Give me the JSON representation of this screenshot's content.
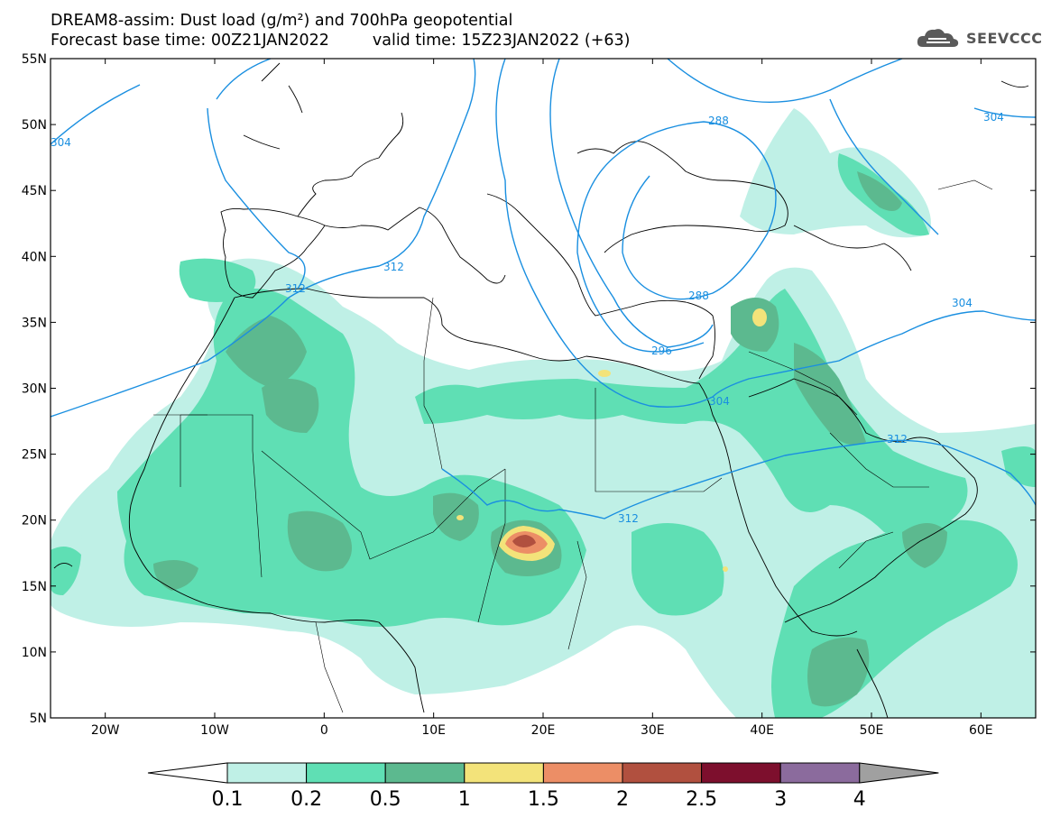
{
  "title_line1": "DREAM8-assim: Dust load (g/m²) and 700hPa geopotential",
  "title_line2_left": "Forecast base time: 00Z21JAN2022",
  "title_line2_right": "valid time: 15Z23JAN2022 (+63)",
  "logo": {
    "text": "SEEVCCC",
    "icon": "cloud-logo-icon"
  },
  "map": {
    "lat_labels": [
      "55N",
      "50N",
      "45N",
      "40N",
      "35N",
      "30N",
      "25N",
      "20N",
      "15N",
      "10N",
      "5N"
    ],
    "lon_labels": [
      "20W",
      "10W",
      "0",
      "10E",
      "20E",
      "30E",
      "40E",
      "50E",
      "60E"
    ],
    "contour_labels": [
      "304",
      "288",
      "304",
      "312",
      "312",
      "288",
      "296",
      "304",
      "304",
      "312",
      "312"
    ],
    "contour_color": "#1a8fe0"
  },
  "colorbar": {
    "ticks": [
      "0.1",
      "0.2",
      "0.5",
      "1",
      "1.5",
      "2",
      "2.5",
      "3",
      "4"
    ],
    "colors": [
      "#bff0e6",
      "#5fdfb4",
      "#5cb98f",
      "#f3e37a",
      "#ec8e66",
      "#b1503f",
      "#7d0f2d",
      "#8b6b9d",
      "#a0a0a0"
    ]
  }
}
